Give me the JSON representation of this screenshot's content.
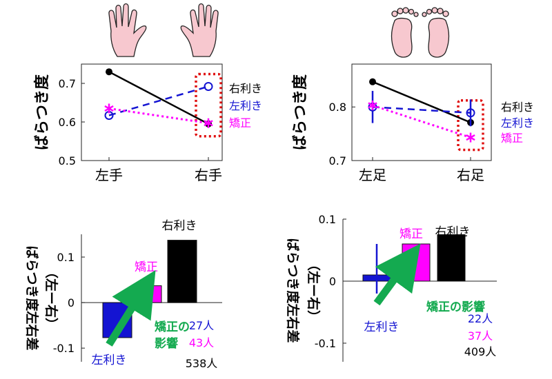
{
  "colors": {
    "right_handed": "#000000",
    "left_handed": "#1414d2",
    "corrected": "#ff00ff",
    "arrow": "#14aa50",
    "highlight": "#e01010",
    "hand_fill": "#f7c8cf",
    "hand_outline": "#222222"
  },
  "icons": [
    "hands-icon",
    "feet-icon"
  ],
  "chart_data": [
    {
      "type": "line",
      "ylabel": "ばらつき度",
      "categories": [
        "左手",
        "右手"
      ],
      "ylim": [
        0.5,
        0.75
      ],
      "yticks": [
        "0.5",
        "0.6",
        "0.7"
      ],
      "series": [
        {
          "name": "右利き",
          "style": "solid",
          "marker": "dot",
          "values": [
            0.73,
            0.595
          ]
        },
        {
          "name": "左利き",
          "style": "dashed",
          "marker": "circle",
          "values": [
            0.617,
            0.692
          ]
        },
        {
          "name": "矯正",
          "style": "dotted",
          "marker": "asterisk",
          "values": [
            0.635,
            0.597
          ]
        }
      ],
      "highlight": "右手"
    },
    {
      "type": "line",
      "ylabel": "ばらつき度",
      "categories": [
        "左足",
        "右足"
      ],
      "ylim": [
        0.7,
        0.88
      ],
      "yticks": [
        "0.7",
        "0.8"
      ],
      "series": [
        {
          "name": "右利き",
          "style": "solid",
          "marker": "dot",
          "values": [
            0.847,
            0.771
          ]
        },
        {
          "name": "左利き",
          "style": "dashed",
          "marker": "circle",
          "values": [
            0.8,
            0.789
          ],
          "error": [
            0.03,
            0.025
          ]
        },
        {
          "name": "矯正",
          "style": "dotted",
          "marker": "asterisk",
          "values": [
            0.803,
            0.743
          ]
        }
      ],
      "highlight": "右足"
    },
    {
      "type": "bar",
      "ylabel": "ばらつき度左右差",
      "ylabel2": "（左ー右）",
      "ylim": [
        -0.13,
        0.15
      ],
      "yticks": [
        "-0.1",
        "0",
        "0.1"
      ],
      "categories": [
        "左利き",
        "矯正",
        "右利き"
      ],
      "values": [
        -0.077,
        0.037,
        0.137
      ],
      "arrow_label": [
        "矯正の",
        "影響"
      ],
      "counts": [
        "27人",
        "43人",
        "538人"
      ]
    },
    {
      "type": "bar",
      "ylabel": "ばらつき度左右差",
      "ylabel2": "（左ー右）",
      "ylim": [
        -0.13,
        0.1
      ],
      "yticks": [
        "-0.1",
        "0",
        "0.1"
      ],
      "categories": [
        "左利き",
        "矯正",
        "右利き"
      ],
      "values": [
        0.01,
        0.06,
        0.075
      ],
      "arrow_label": [
        "矯正の影響"
      ],
      "counts": [
        "22人",
        "37人",
        "409人"
      ]
    }
  ]
}
